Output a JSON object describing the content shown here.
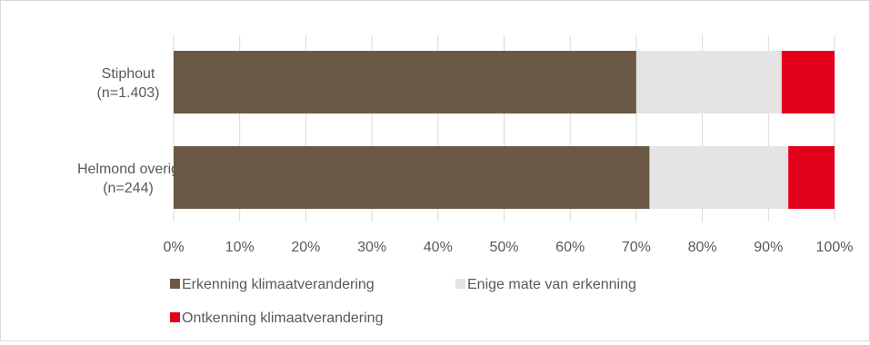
{
  "chart_data": {
    "type": "bar",
    "orientation": "horizontal",
    "stacked": true,
    "categories": [
      [
        "Stiphout",
        "(n=1.403)"
      ],
      [
        "Helmond overig",
        "(n=244)"
      ]
    ],
    "series": [
      {
        "name": "Erkenning klimaatverandering",
        "values": [
          70,
          72
        ],
        "color": "#6b5946"
      },
      {
        "name": "Enige mate van erkenning",
        "values": [
          22,
          21
        ],
        "color": "#e4e4e4"
      },
      {
        "name": "Ontkenning klimaatverandering",
        "values": [
          8,
          7
        ],
        "color": "#e3001b"
      }
    ],
    "x_ticks": [
      "0%",
      "10%",
      "20%",
      "30%",
      "40%",
      "50%",
      "60%",
      "70%",
      "80%",
      "90%",
      "100%"
    ],
    "xlim": [
      0,
      100
    ],
    "grid": "vertical",
    "legend_position": "bottom"
  }
}
